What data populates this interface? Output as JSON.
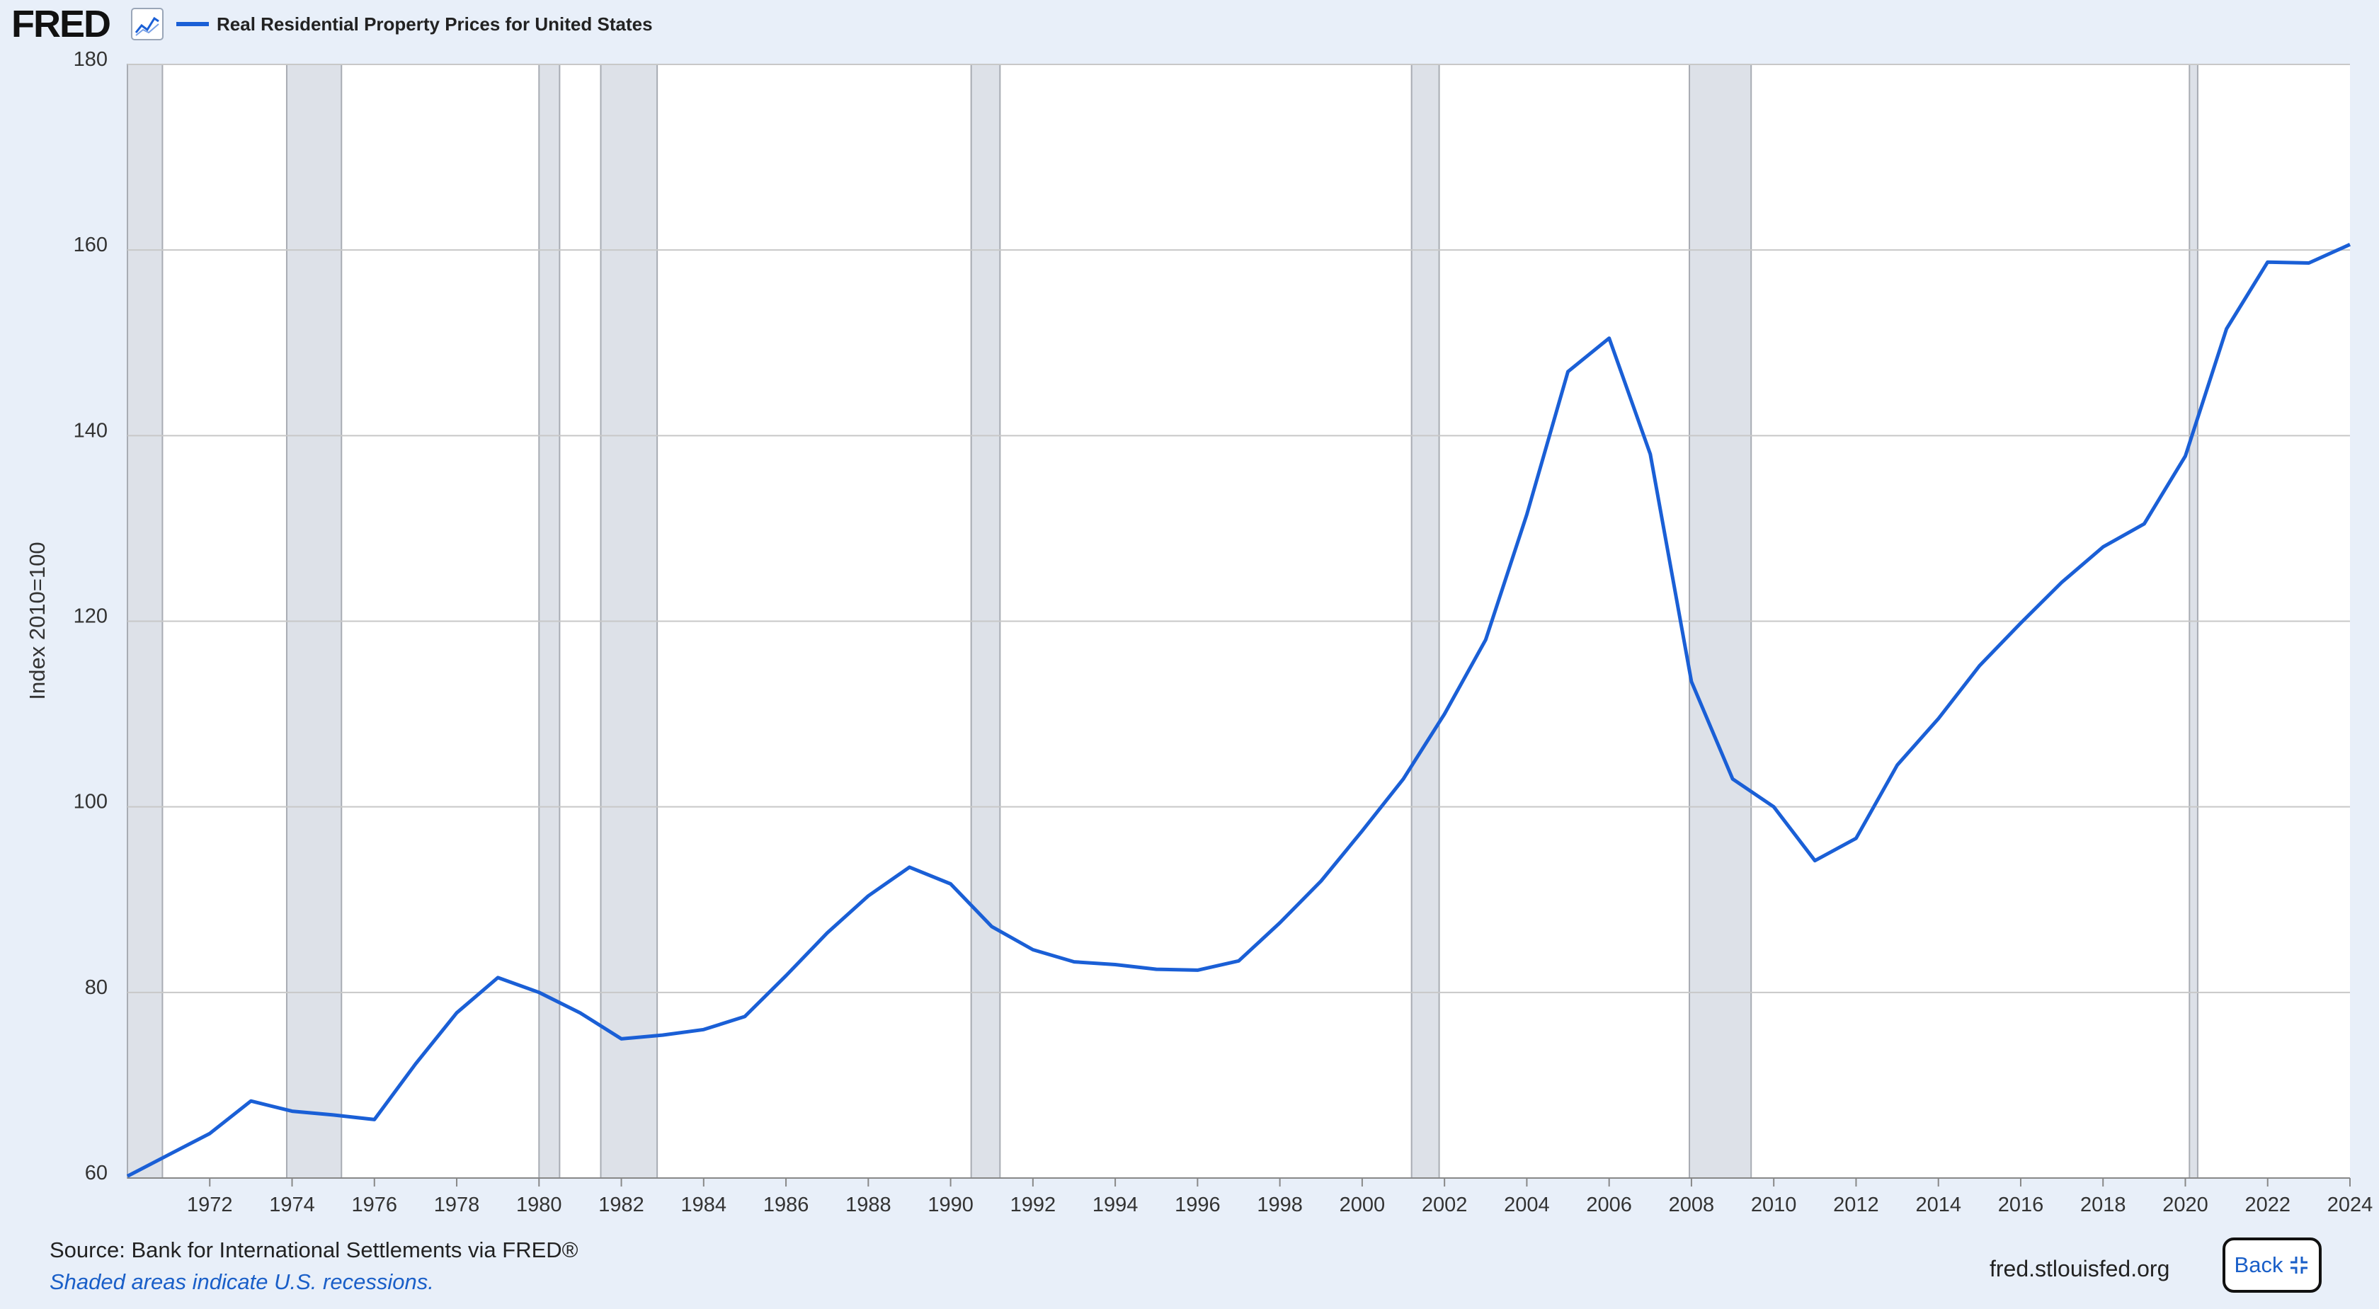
{
  "header": {
    "logo_text": "FRED",
    "logo_icon": "line-chart-icon",
    "legend_label": "Real Residential Property Prices for United States"
  },
  "colors": {
    "series": "#1a5fd6",
    "recession": "#dde1e8",
    "recession_edge": "#a8acb3",
    "grid": "#c8c8c8",
    "plot_bg": "#ffffff",
    "page_bg": "#e8eff9"
  },
  "chart_data": {
    "type": "line",
    "title": "",
    "xlabel": "",
    "ylabel": "Index 2010=100",
    "xlim": [
      1970,
      2024
    ],
    "ylim": [
      60,
      180
    ],
    "y_ticks": [
      60,
      80,
      100,
      120,
      140,
      160,
      180
    ],
    "x_ticks": [
      1972,
      1974,
      1976,
      1978,
      1980,
      1982,
      1984,
      1986,
      1988,
      1990,
      1992,
      1994,
      1996,
      1998,
      2000,
      2002,
      2004,
      2006,
      2008,
      2010,
      2012,
      2014,
      2016,
      2018,
      2020,
      2022,
      2024
    ],
    "grid": true,
    "legend": "top-left",
    "series": [
      {
        "name": "Real Residential Property Prices for United States",
        "x": [
          1970,
          1971,
          1972,
          1973,
          1974,
          1975,
          1976,
          1977,
          1978,
          1979,
          1980,
          1981,
          1982,
          1983,
          1984,
          1985,
          1986,
          1987,
          1988,
          1989,
          1990,
          1991,
          1992,
          1993,
          1994,
          1995,
          1996,
          1997,
          1998,
          1999,
          2000,
          2001,
          2002,
          2003,
          2004,
          2005,
          2006,
          2007,
          2008,
          2009,
          2010,
          2011,
          2012,
          2013,
          2014,
          2015,
          2016,
          2017,
          2018,
          2019,
          2020,
          2021,
          2022,
          2023,
          2024
        ],
        "values": [
          60.2,
          62.5,
          64.8,
          68.3,
          67.2,
          66.8,
          66.3,
          72.3,
          77.8,
          81.6,
          80.0,
          77.8,
          75.0,
          75.4,
          76.0,
          77.4,
          81.8,
          86.4,
          90.4,
          93.5,
          91.7,
          87.1,
          84.6,
          83.3,
          83.0,
          82.5,
          82.4,
          83.4,
          87.5,
          92.0,
          97.4,
          103.0,
          110.0,
          118.0,
          131.5,
          146.9,
          150.5,
          138.0,
          113.5,
          103.0,
          100.0,
          94.2,
          96.6,
          104.5,
          109.5,
          115.2,
          119.8,
          124.2,
          128.0,
          130.5,
          137.8,
          151.5,
          158.7,
          158.6,
          160.6
        ]
      }
    ],
    "recessions": [
      [
        1969.95,
        1970.85
      ],
      [
        1973.87,
        1975.2
      ],
      [
        1980.0,
        1980.5
      ],
      [
        1981.5,
        1982.87
      ],
      [
        1990.5,
        1991.2
      ],
      [
        2001.2,
        2001.87
      ],
      [
        2007.95,
        2009.45
      ],
      [
        2020.1,
        2020.3
      ]
    ]
  },
  "footer": {
    "source": "Source: Bank for International Settlements via FRED®",
    "note": "Shaded areas indicate U.S. recessions.",
    "site": "fred.stlouisfed.org",
    "back_label": "Back"
  }
}
